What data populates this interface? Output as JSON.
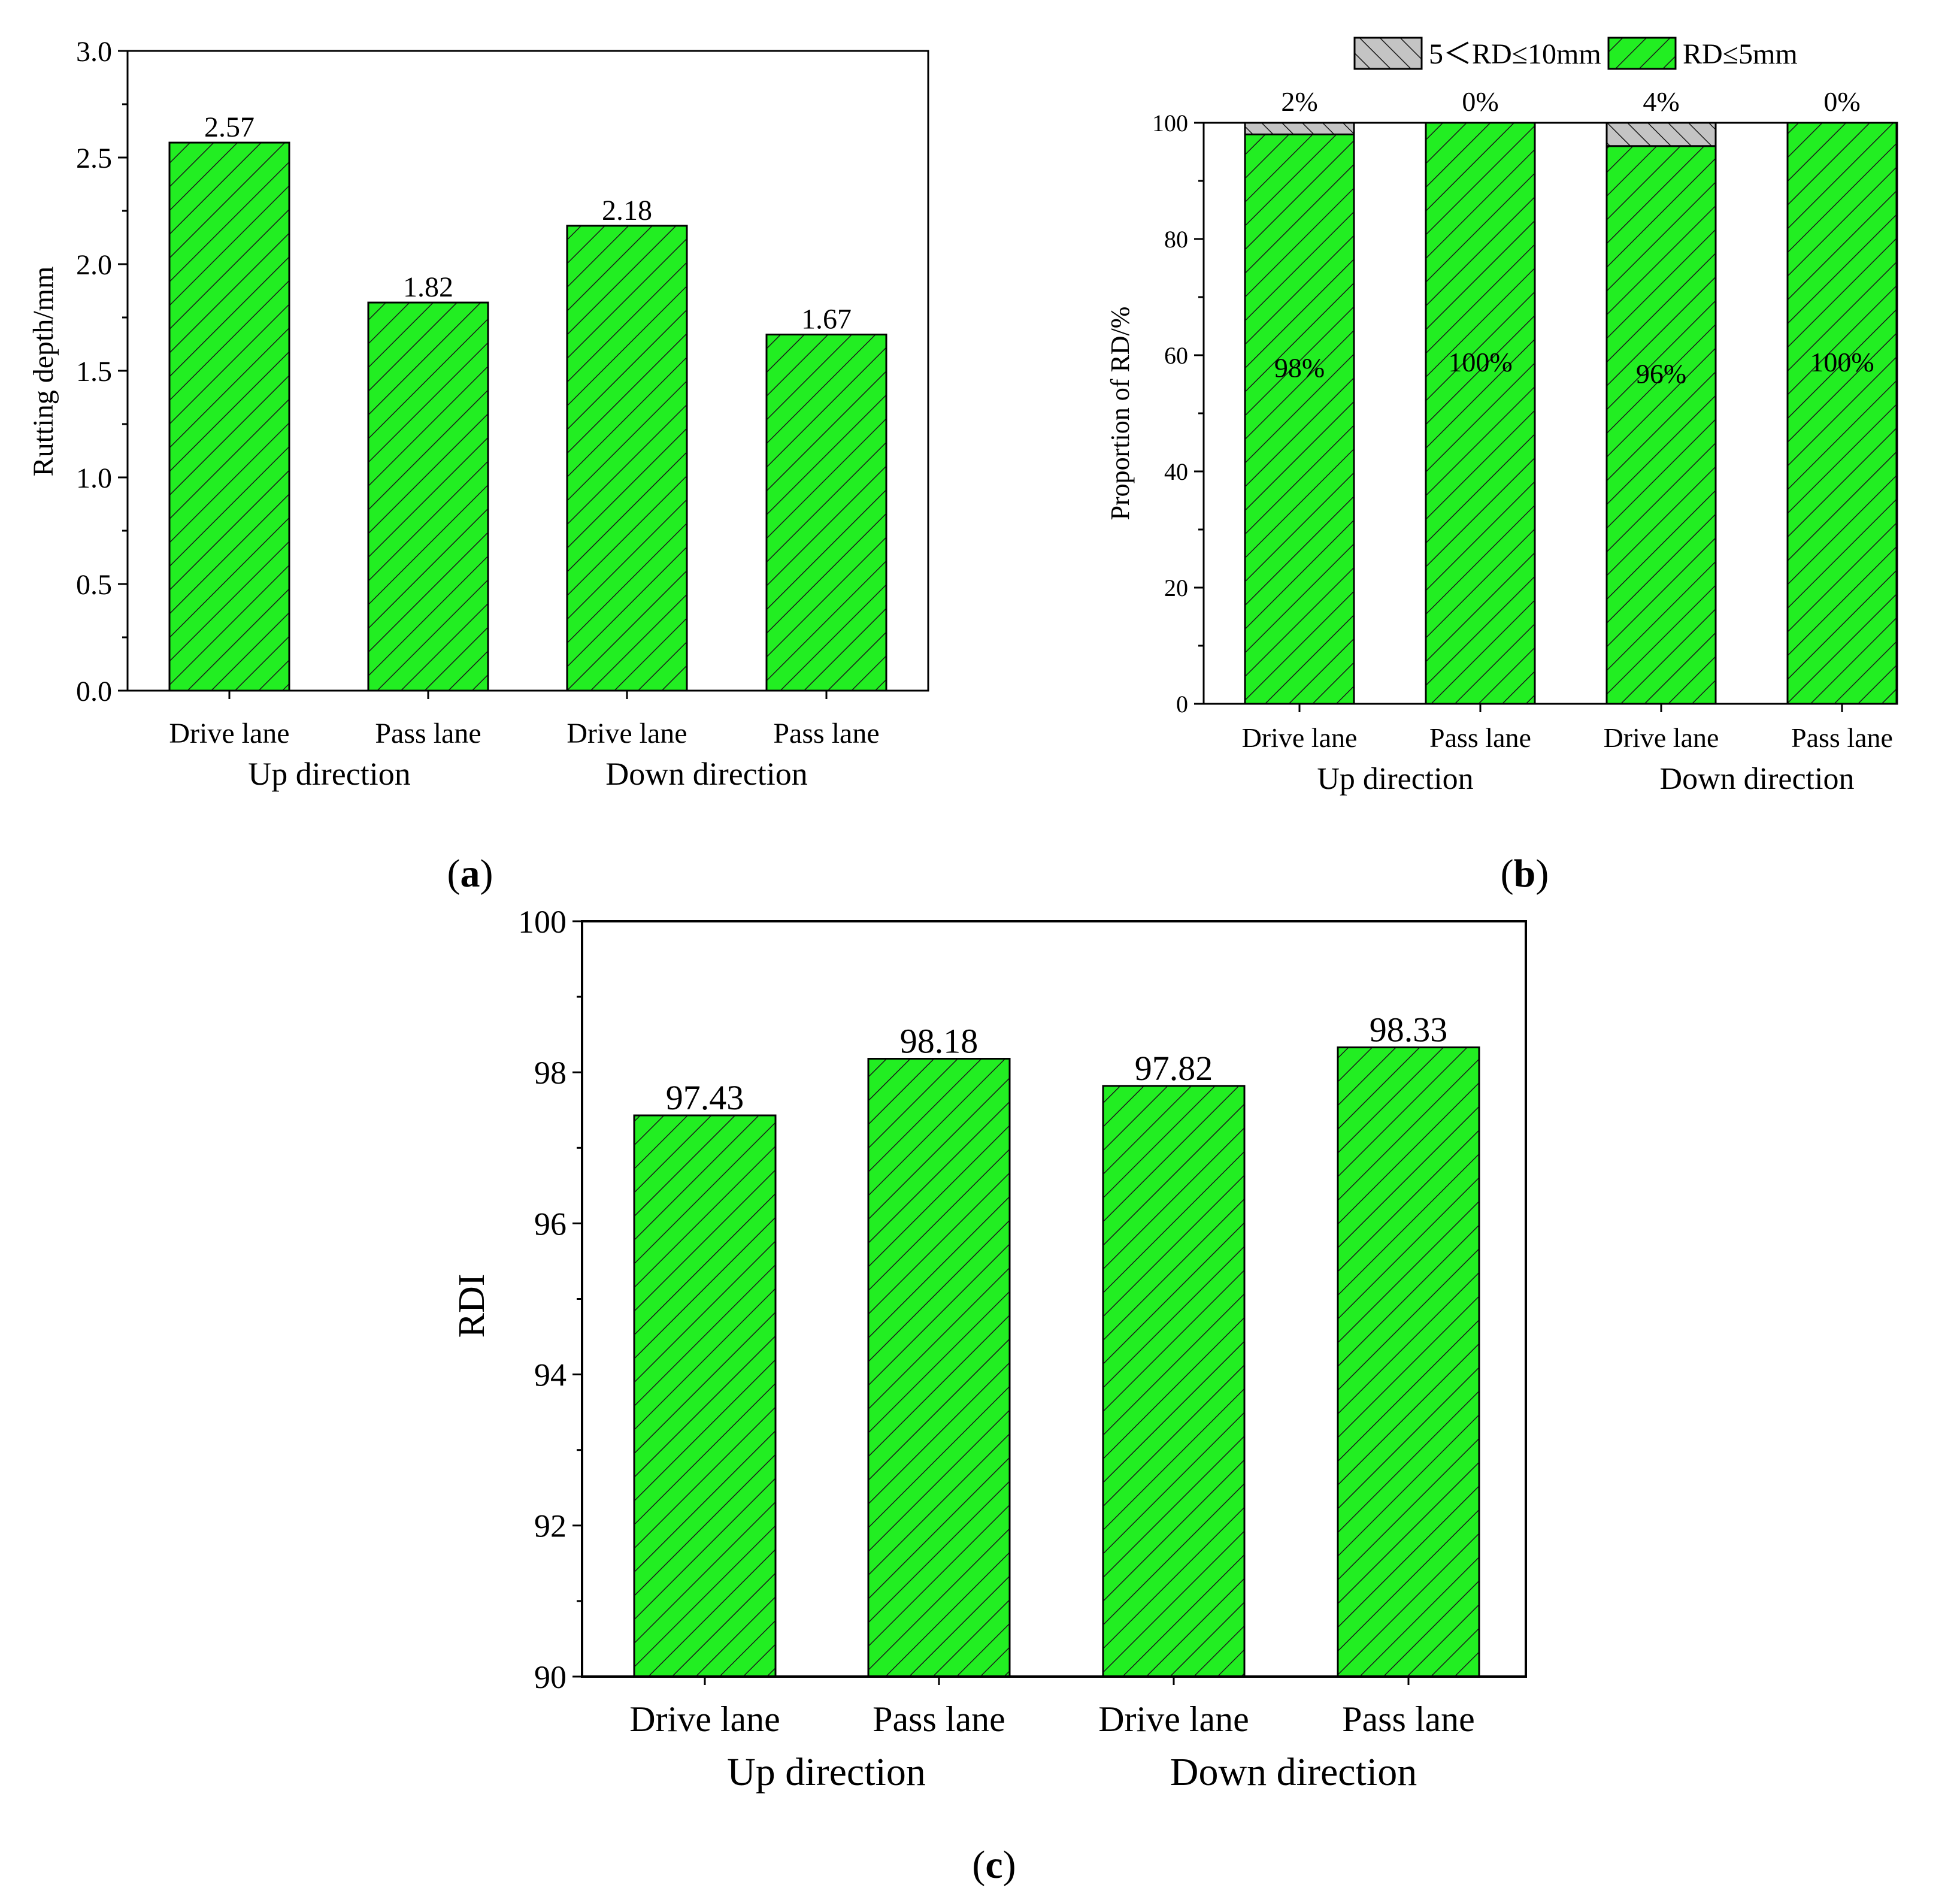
{
  "colors": {
    "green": "#22ee22",
    "gray": "#c4c4c4",
    "hatch": "#1a1a1a"
  },
  "chart_data": [
    {
      "id": "a",
      "panel_label": "(a)",
      "type": "bar",
      "categories": [
        "Drive lane",
        "Pass lane",
        "Drive lane",
        "Pass lane"
      ],
      "groups": [
        "Up direction",
        "Down direction"
      ],
      "values": [
        2.57,
        1.82,
        2.18,
        1.67
      ],
      "value_labels": [
        "2.57",
        "1.82",
        "2.18",
        "1.67"
      ],
      "ylabel": "Rutting depth/mm",
      "ylim": [
        0,
        3.0
      ],
      "yticks": [
        "0.0",
        "0.5",
        "1.0",
        "1.5",
        "2.0",
        "2.5",
        "3.0"
      ]
    },
    {
      "id": "b",
      "panel_label": "(b)",
      "type": "bar",
      "stacked": true,
      "categories": [
        "Drive lane",
        "Pass lane",
        "Drive lane",
        "Pass lane"
      ],
      "groups": [
        "Up direction",
        "Down direction"
      ],
      "series": [
        {
          "name": "RD≤5mm",
          "values": [
            98,
            100,
            96,
            100
          ],
          "labels": [
            "98%",
            "100%",
            "96%",
            "100%"
          ]
        },
        {
          "name": "5＜RD≤10mm",
          "values": [
            2,
            0,
            4,
            0
          ],
          "labels": [
            "2%",
            "0%",
            "4%",
            "0%"
          ]
        }
      ],
      "legend": [
        "5＜RD≤10mm",
        "RD≤5mm"
      ],
      "ylabel": "Proportion of RD/%",
      "ylim": [
        0,
        100
      ],
      "yticks": [
        "0",
        "20",
        "40",
        "60",
        "80",
        "100"
      ]
    },
    {
      "id": "c",
      "panel_label": "(c)",
      "type": "bar",
      "categories": [
        "Drive lane",
        "Pass lane",
        "Drive lane",
        "Pass lane"
      ],
      "groups": [
        "Up direction",
        "Down direction"
      ],
      "values": [
        97.43,
        98.18,
        97.82,
        98.33
      ],
      "value_labels": [
        "97.43",
        "98.18",
        "97.82",
        "98.33"
      ],
      "ylabel": "RDI",
      "ylim": [
        90,
        100
      ],
      "yticks": [
        "90",
        "92",
        "94",
        "96",
        "98",
        "100"
      ]
    }
  ]
}
